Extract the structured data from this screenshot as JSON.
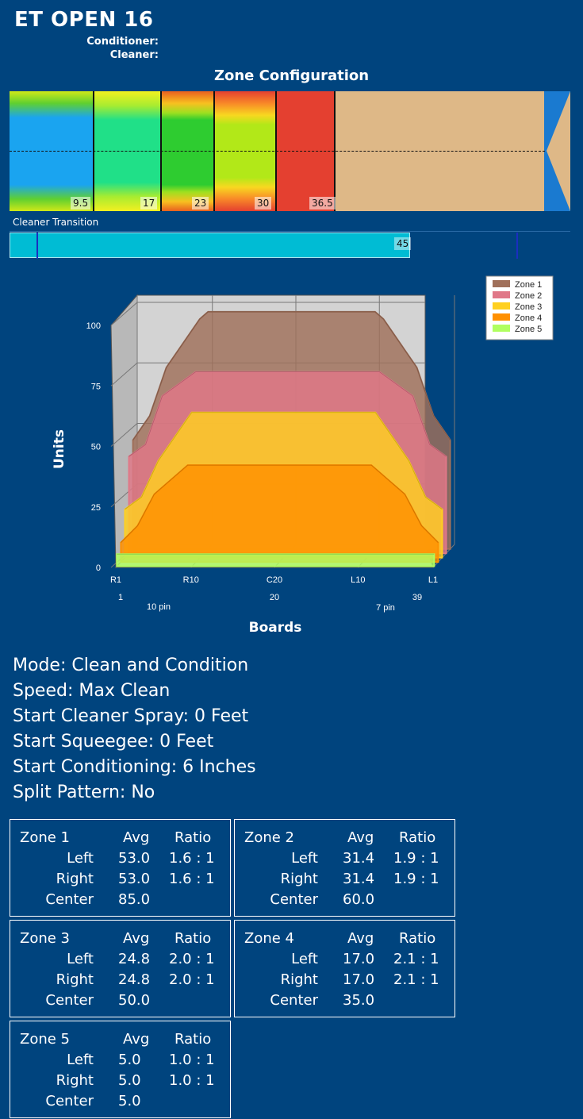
{
  "header": {
    "title": "ET OPEN 16",
    "conditioner_label": "Conditioner:",
    "cleaner_label": "Cleaner:",
    "zone_config_title": "Zone Configuration"
  },
  "zone_strip": {
    "labels": [
      "9.5",
      "17",
      "23",
      "30",
      "36.5"
    ],
    "zone_colors": [
      "#1aa4f0",
      "#20e088",
      "#2ecc30",
      "#b2e818",
      "#e44030"
    ],
    "lane_color": "#deb887"
  },
  "cleaner_transition": {
    "label": "Cleaner Transition",
    "value_label": "45",
    "bar_color": "#00bcd4"
  },
  "chart_data": {
    "type": "area",
    "title": "",
    "xlabel": "Boards",
    "ylabel": "Units",
    "ylim": [
      0,
      100
    ],
    "y_ticks": [
      "0",
      "25",
      "50",
      "75",
      "100"
    ],
    "x_ticks_top": [
      "R1",
      "R10",
      "C20",
      "L10",
      "L1"
    ],
    "x_ticks_bottom": [
      "1",
      "20",
      "39"
    ],
    "pin_labels": [
      "10 pin",
      "7 pin"
    ],
    "legend_position": "top-right",
    "x": [
      1,
      3,
      5,
      9,
      10,
      30,
      31,
      35,
      37,
      39
    ],
    "series": [
      {
        "name": "Zone 1",
        "color": "#a0705a",
        "values": [
          45,
          55,
          75,
          95,
          98,
          98,
          95,
          75,
          55,
          45
        ]
      },
      {
        "name": "Zone 2",
        "color": "#e07888",
        "values": [
          40,
          45,
          65,
          75,
          75,
          75,
          75,
          65,
          45,
          40
        ]
      },
      {
        "name": "Zone 3",
        "color": "#ffd020",
        "values": [
          20,
          25,
          40,
          60,
          60,
          60,
          60,
          40,
          25,
          20
        ]
      },
      {
        "name": "Zone 4",
        "color": "#ff9000",
        "values": [
          8,
          15,
          28,
          40,
          40,
          40,
          40,
          28,
          15,
          8
        ]
      },
      {
        "name": "Zone 5",
        "color": "#b0ff60",
        "values": [
          5,
          5,
          5,
          5,
          5,
          5,
          5,
          5,
          5,
          5
        ]
      }
    ]
  },
  "settings": {
    "mode": "Mode: Clean and Condition",
    "speed": "Speed: Max Clean",
    "start_cleaner_spray": "Start Cleaner Spray: 0 Feet",
    "start_squeegee": "Start Squeegee: 0 Feet",
    "start_conditioning": "Start Conditioning: 6 Inches",
    "split_pattern": "Split Pattern: No"
  },
  "zones": [
    {
      "name": "Zone 1",
      "avg_header": "Avg",
      "ratio_header": "Ratio",
      "left_label": "Left",
      "left_avg": "53.0",
      "left_ratio": "1.6 : 1",
      "right_label": "Right",
      "right_avg": "53.0",
      "right_ratio": "1.6 : 1",
      "center_label": "Center",
      "center_avg": "85.0"
    },
    {
      "name": "Zone 2",
      "avg_header": "Avg",
      "ratio_header": "Ratio",
      "left_label": "Left",
      "left_avg": "31.4",
      "left_ratio": "1.9 : 1",
      "right_label": "Right",
      "right_avg": "31.4",
      "right_ratio": "1.9 : 1",
      "center_label": "Center",
      "center_avg": "60.0"
    },
    {
      "name": "Zone 3",
      "avg_header": "Avg",
      "ratio_header": "Ratio",
      "left_label": "Left",
      "left_avg": "24.8",
      "left_ratio": "2.0 : 1",
      "right_label": "Right",
      "right_avg": "24.8",
      "right_ratio": "2.0 : 1",
      "center_label": "Center",
      "center_avg": "50.0"
    },
    {
      "name": "Zone 4",
      "avg_header": "Avg",
      "ratio_header": "Ratio",
      "left_label": "Left",
      "left_avg": "17.0",
      "left_ratio": "2.1 : 1",
      "right_label": "Right",
      "right_avg": "17.0",
      "right_ratio": "2.1 : 1",
      "center_label": "Center",
      "center_avg": "35.0"
    },
    {
      "name": "Zone 5",
      "avg_header": "Avg",
      "ratio_header": "Ratio",
      "left_label": "Left",
      "left_avg": "5.0",
      "left_ratio": "1.0 : 1",
      "right_label": "Right",
      "right_avg": "5.0",
      "right_ratio": "1.0 : 1",
      "center_label": "Center",
      "center_avg": "5.0"
    }
  ]
}
